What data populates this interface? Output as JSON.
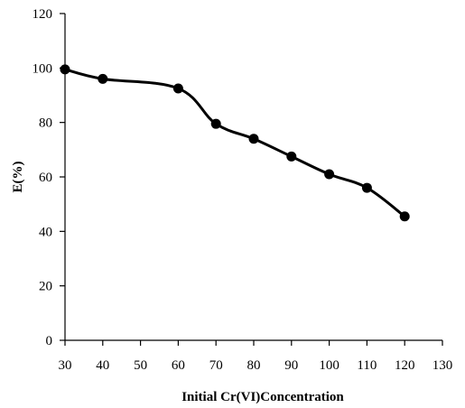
{
  "chart_data": {
    "type": "line",
    "title": "",
    "xlabel": "Initial Cr(VI)Concentration",
    "ylabel": "E(%)",
    "xlim": [
      30,
      130
    ],
    "ylim": [
      0,
      120
    ],
    "x_ticks": [
      30,
      40,
      50,
      60,
      70,
      80,
      90,
      100,
      110,
      120,
      130
    ],
    "y_ticks": [
      0,
      20,
      40,
      60,
      80,
      100,
      120
    ],
    "grid": false,
    "legend": "none",
    "line_style": "smooth",
    "series": [
      {
        "x": [
          30,
          40,
          60,
          70,
          80,
          90,
          100,
          110,
          120
        ],
        "y": [
          99.5,
          96,
          92.5,
          79.5,
          74,
          67.5,
          61,
          56,
          45.5
        ],
        "color": "#000000",
        "marker": "circle"
      }
    ]
  }
}
